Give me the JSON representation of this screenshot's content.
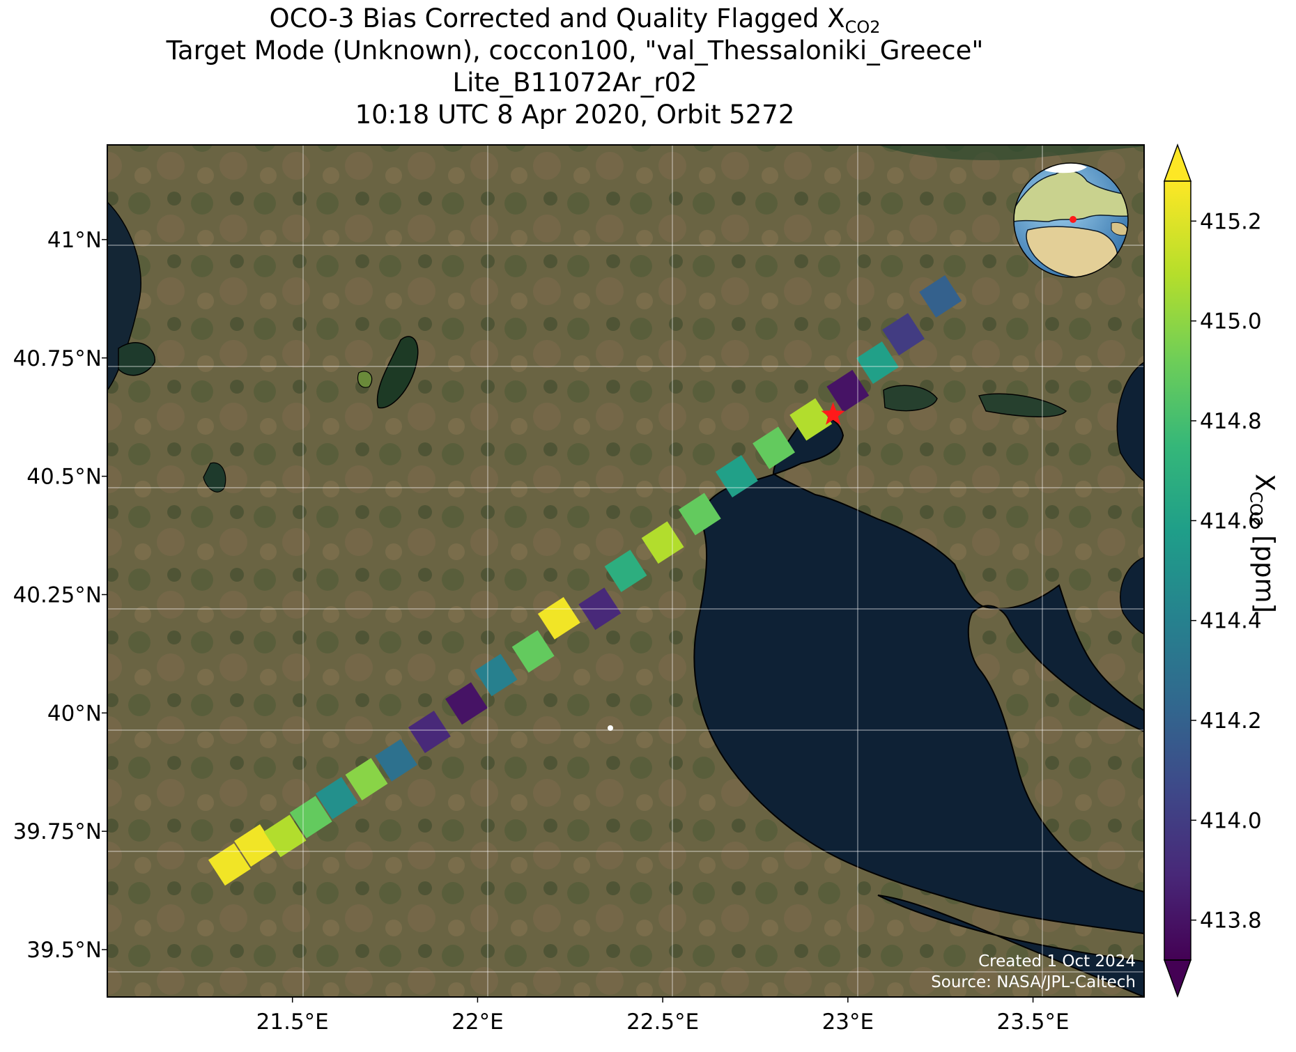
{
  "title": {
    "line1_prefix": "OCO-3 Bias Corrected and Quality Flagged X",
    "line1_sub": "CO2",
    "line2": "Target Mode (Unknown), coccon100, \"val_Thessaloniki_Greece\"",
    "line3": "Lite_B11072Ar_r02",
    "line4": "10:18 UTC 8 Apr 2020, Orbit 5272"
  },
  "map": {
    "lon_range": [
      21.0,
      23.8
    ],
    "lat_range": [
      39.4,
      41.2
    ],
    "lon_ticks": [
      {
        "value": 21.5,
        "label": "21.5°E"
      },
      {
        "value": 22.0,
        "label": "22°E"
      },
      {
        "value": 22.5,
        "label": "22.5°E"
      },
      {
        "value": 23.0,
        "label": "23°E"
      },
      {
        "value": 23.5,
        "label": "23.5°E"
      }
    ],
    "lat_ticks": [
      {
        "value": 39.5,
        "label": "39.5°N"
      },
      {
        "value": 39.75,
        "label": "39.75°N"
      },
      {
        "value": 40.0,
        "label": "40°N"
      },
      {
        "value": 40.25,
        "label": "40.25°N"
      },
      {
        "value": 40.5,
        "label": "40.5°N"
      },
      {
        "value": 40.75,
        "label": "40.75°N"
      },
      {
        "value": 41.0,
        "label": "41°N"
      }
    ],
    "grid": true,
    "target_site": {
      "lon": 22.96,
      "lat": 40.63,
      "marker": "red-star"
    },
    "inset_globe": {
      "position": "top-right",
      "center_lon": 23,
      "center_lat": 40
    },
    "credits": {
      "created": "Created 1 Oct 2024",
      "source": "Source: NASA/JPL-Caltech"
    },
    "colors": {
      "land": "#5c5a3e",
      "sea": "#0e2135",
      "star": "#ff1a1a"
    }
  },
  "colorbar": {
    "label_prefix": "X",
    "label_sub": "CO2",
    "label_suffix": " [ppm]",
    "range": [
      413.72,
      415.28
    ],
    "ticks": [
      {
        "value": 413.8,
        "label": "413.8"
      },
      {
        "value": 414.0,
        "label": "414.0"
      },
      {
        "value": 414.2,
        "label": "414.2"
      },
      {
        "value": 414.4,
        "label": "414.4"
      },
      {
        "value": 414.6,
        "label": "414.6"
      },
      {
        "value": 414.8,
        "label": "414.8"
      },
      {
        "value": 415.0,
        "label": "415.0"
      },
      {
        "value": 415.2,
        "label": "415.2"
      }
    ],
    "extend": "both",
    "colormap": "viridis",
    "stops": [
      "#440154",
      "#482878",
      "#3e4989",
      "#31688e",
      "#26828e",
      "#1f9e89",
      "#35b779",
      "#6ece58",
      "#b5de2b",
      "#fde725"
    ]
  },
  "chart_data": {
    "type": "heatmap",
    "title": "OCO-3 Bias Corrected and Quality Flagged XCO2",
    "xlabel": "",
    "ylabel": "",
    "swath": [
      {
        "lon": 21.33,
        "lat": 39.68,
        "xco2": 415.25
      },
      {
        "lon": 21.4,
        "lat": 39.72,
        "xco2": 415.25
      },
      {
        "lon": 21.48,
        "lat": 39.74,
        "xco2": 415.1
      },
      {
        "lon": 21.55,
        "lat": 39.78,
        "xco2": 414.9
      },
      {
        "lon": 21.62,
        "lat": 39.82,
        "xco2": 414.5
      },
      {
        "lon": 21.7,
        "lat": 39.86,
        "xco2": 415.0
      },
      {
        "lon": 21.78,
        "lat": 39.9,
        "xco2": 414.3
      },
      {
        "lon": 21.87,
        "lat": 39.96,
        "xco2": 413.9
      },
      {
        "lon": 21.97,
        "lat": 40.02,
        "xco2": 413.8
      },
      {
        "lon": 22.05,
        "lat": 40.08,
        "xco2": 414.4
      },
      {
        "lon": 22.15,
        "lat": 40.13,
        "xco2": 414.9
      },
      {
        "lon": 22.22,
        "lat": 40.2,
        "xco2": 415.25
      },
      {
        "lon": 22.33,
        "lat": 40.22,
        "xco2": 413.9
      },
      {
        "lon": 22.4,
        "lat": 40.3,
        "xco2": 414.7
      },
      {
        "lon": 22.5,
        "lat": 40.36,
        "xco2": 415.1
      },
      {
        "lon": 22.6,
        "lat": 40.42,
        "xco2": 414.9
      },
      {
        "lon": 22.7,
        "lat": 40.5,
        "xco2": 414.6
      },
      {
        "lon": 22.8,
        "lat": 40.56,
        "xco2": 414.9
      },
      {
        "lon": 22.9,
        "lat": 40.62,
        "xco2": 415.1
      },
      {
        "lon": 23.0,
        "lat": 40.68,
        "xco2": 413.8
      },
      {
        "lon": 23.08,
        "lat": 40.74,
        "xco2": 414.6
      },
      {
        "lon": 23.15,
        "lat": 40.8,
        "xco2": 414.0
      },
      {
        "lon": 23.25,
        "lat": 40.88,
        "xco2": 414.2
      }
    ]
  }
}
